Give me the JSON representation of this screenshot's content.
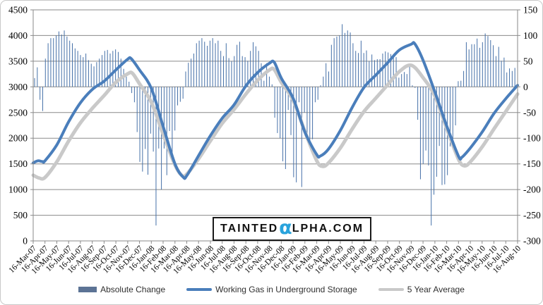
{
  "watermark": {
    "pre": "TAINTED",
    "alpha": "α",
    "post": "LPHA.COM"
  },
  "chart_data": {
    "type": "combo-bar-line",
    "title": "",
    "grid": true,
    "background": "#ffffff",
    "x_tick_labels": [
      "16-Mar-07",
      "16-Apr-07",
      "16-May-07",
      "16-Jun-07",
      "16-Jul-07",
      "16-Aug-07",
      "16-Sep-07",
      "16-Oct-07",
      "16-Nov-07",
      "16-Dec-07",
      "16-Jan-08",
      "16-Feb-08",
      "16-Mar-08",
      "16-Apr-08",
      "16-May-08",
      "16-Jun-08",
      "16-Jul-08",
      "16-Aug-08",
      "16-Sep-08",
      "16-Oct-08",
      "16-Nov-08",
      "16-Dec-08",
      "16-Jan-09",
      "16-Feb-09",
      "16-Mar-09",
      "16-Apr-09",
      "16-May-09",
      "16-Jun-09",
      "16-Jul-09",
      "16-Aug-09",
      "16-Sep-09",
      "16-Oct-09",
      "16-Nov-09",
      "16-Dec-09",
      "16-Jan-10",
      "16-Feb-10",
      "16-Mar-10",
      "16-Apr-10",
      "16-May-10",
      "16-Jun-10",
      "16-Jul-10",
      "16-Aug-10"
    ],
    "y_left": {
      "min": 0,
      "max": 4500,
      "step": 500,
      "ticks": [
        4500,
        4000,
        3500,
        3000,
        2500,
        2000,
        1500,
        1000,
        500,
        0
      ]
    },
    "y_right": {
      "min": -300,
      "max": 150,
      "step": 50,
      "ticks": [
        150,
        100,
        50,
        0,
        -50,
        -100,
        -150,
        -200,
        -250,
        -300
      ]
    },
    "colors": {
      "bars": "#4570a8",
      "storage_line": "#4a7ebb",
      "avg_line": "#c9c9c9",
      "bar_legend_swatch": "#5c7395",
      "gridline": "#8a8a8a",
      "axis": "#8a8a8a"
    },
    "legend": {
      "position": "bottom",
      "items": [
        "Absolute Change",
        "Working Gas in Underground Storage",
        "5 Year Average"
      ]
    },
    "series": [
      {
        "name": "Absolute Change",
        "type": "bar",
        "axis": "right",
        "start": "16-Mar-07",
        "interval": "weekly",
        "values": [
          17,
          38,
          -25,
          -47,
          55,
          85,
          95,
          95,
          100,
          108,
          102,
          110,
          98,
          90,
          85,
          75,
          70,
          62,
          58,
          65,
          52,
          45,
          40,
          48,
          55,
          62,
          70,
          72,
          65,
          70,
          73,
          68,
          55,
          35,
          20,
          10,
          -12,
          -30,
          -88,
          -146,
          -165,
          -121,
          -171,
          -91,
          -126,
          -270,
          -120,
          -200,
          -120,
          -172,
          -86,
          -140,
          -85,
          -36,
          -29,
          -23,
          30,
          47,
          55,
          65,
          85,
          90,
          95,
          88,
          80,
          90,
          95,
          85,
          90,
          70,
          60,
          85,
          56,
          50,
          60,
          82,
          88,
          60,
          58,
          51,
          70,
          87,
          79,
          70,
          46,
          12,
          46,
          20,
          5,
          -60,
          -90,
          -100,
          -145,
          -160,
          -45,
          -94,
          -176,
          -186,
          -30,
          -195,
          -50,
          -101,
          -106,
          -102,
          -30,
          -25,
          3,
          20,
          46,
          30,
          82,
          95,
          98,
          100,
          122,
          105,
          110,
          106,
          85,
          70,
          66,
          90,
          66,
          71,
          50,
          63,
          52,
          54,
          54,
          65,
          69,
          67,
          64,
          64,
          58,
          18,
          25,
          29,
          25,
          44,
          3,
          -2,
          -64,
          -180,
          -150,
          -124,
          -153,
          -270,
          -210,
          -175,
          -115,
          -191,
          -190,
          -172,
          -116,
          -111,
          -75,
          11,
          12,
          31,
          87,
          73,
          83,
          83,
          94,
          76,
          87,
          104,
          99,
          91,
          81,
          60,
          78,
          51,
          57,
          28,
          36,
          31,
          37,
          42
        ]
      },
      {
        "name": "Working Gas in Underground Storage",
        "type": "line",
        "axis": "left",
        "points": [
          [
            0,
            1520
          ],
          [
            0.4,
            1560
          ],
          [
            0.8,
            1545
          ],
          [
            1,
            1560
          ],
          [
            2,
            1870
          ],
          [
            3,
            2320
          ],
          [
            4,
            2690
          ],
          [
            5,
            2950
          ],
          [
            6,
            3110
          ],
          [
            7,
            3330
          ],
          [
            8,
            3540
          ],
          [
            8.3,
            3548
          ],
          [
            9,
            3330
          ],
          [
            10,
            2970
          ],
          [
            11,
            2230
          ],
          [
            12,
            1500
          ],
          [
            12.7,
            1242
          ],
          [
            13,
            1270
          ],
          [
            14,
            1660
          ],
          [
            15,
            2050
          ],
          [
            16,
            2390
          ],
          [
            17,
            2650
          ],
          [
            18,
            3020
          ],
          [
            19,
            3280
          ],
          [
            20,
            3460
          ],
          [
            20.4,
            3480
          ],
          [
            21,
            3170
          ],
          [
            22,
            2780
          ],
          [
            23,
            2120
          ],
          [
            24,
            1680
          ],
          [
            24.3,
            1652
          ],
          [
            25,
            1790
          ],
          [
            26,
            2150
          ],
          [
            27,
            2600
          ],
          [
            28,
            2990
          ],
          [
            29,
            3230
          ],
          [
            30,
            3470
          ],
          [
            31,
            3720
          ],
          [
            32,
            3830
          ],
          [
            32.3,
            3840
          ],
          [
            33,
            3520
          ],
          [
            34,
            2900
          ],
          [
            35,
            2240
          ],
          [
            36,
            1650
          ],
          [
            36.3,
            1632
          ],
          [
            37,
            1810
          ],
          [
            38,
            2120
          ],
          [
            39,
            2480
          ],
          [
            40,
            2770
          ],
          [
            41,
            3030
          ]
        ]
      },
      {
        "name": "5 Year Average",
        "type": "line",
        "axis": "left",
        "points": [
          [
            0,
            1280
          ],
          [
            0.5,
            1225
          ],
          [
            1,
            1235
          ],
          [
            2,
            1540
          ],
          [
            3,
            1945
          ],
          [
            4,
            2300
          ],
          [
            5,
            2580
          ],
          [
            6,
            2830
          ],
          [
            7,
            3090
          ],
          [
            8,
            3255
          ],
          [
            8.4,
            3265
          ],
          [
            9,
            3060
          ],
          [
            10,
            2700
          ],
          [
            11,
            2080
          ],
          [
            12,
            1480
          ],
          [
            12.6,
            1272
          ],
          [
            13,
            1300
          ],
          [
            14,
            1600
          ],
          [
            15,
            1950
          ],
          [
            16,
            2290
          ],
          [
            17,
            2560
          ],
          [
            18,
            2860
          ],
          [
            19,
            3130
          ],
          [
            20,
            3330
          ],
          [
            20.4,
            3338
          ],
          [
            21,
            3090
          ],
          [
            22,
            2740
          ],
          [
            23,
            2130
          ],
          [
            24,
            1560
          ],
          [
            24.5,
            1452
          ],
          [
            25,
            1520
          ],
          [
            26,
            1810
          ],
          [
            27,
            2180
          ],
          [
            28,
            2520
          ],
          [
            29,
            2780
          ],
          [
            30,
            3040
          ],
          [
            31,
            3300
          ],
          [
            32,
            3420
          ],
          [
            33,
            3180
          ],
          [
            34,
            2820
          ],
          [
            35,
            2190
          ],
          [
            36,
            1590
          ],
          [
            36.5,
            1462
          ],
          [
            37,
            1540
          ],
          [
            38,
            1830
          ],
          [
            39,
            2180
          ],
          [
            40,
            2520
          ],
          [
            41,
            2860
          ]
        ]
      }
    ]
  }
}
